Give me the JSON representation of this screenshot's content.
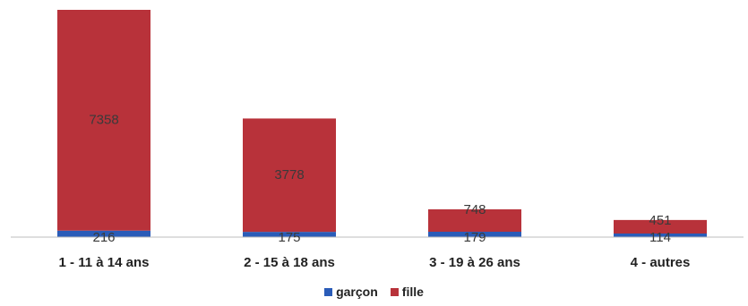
{
  "chart_data": {
    "type": "bar",
    "stacked": true,
    "categories": [
      "1 - 11 à 14 ans",
      "2 - 15 à 18 ans",
      "3 - 19 à 26 ans",
      "4 - autres"
    ],
    "series": [
      {
        "name": "garçon",
        "color": "#2a5cb8",
        "values": [
          216,
          175,
          179,
          114
        ]
      },
      {
        "name": "fille",
        "color": "#b8323a",
        "values": [
          7358,
          3778,
          748,
          451
        ]
      }
    ],
    "title": "",
    "xlabel": "",
    "ylabel": "",
    "ylim": [
      0,
      7574
    ],
    "grid": false,
    "legend_position": "bottom"
  }
}
